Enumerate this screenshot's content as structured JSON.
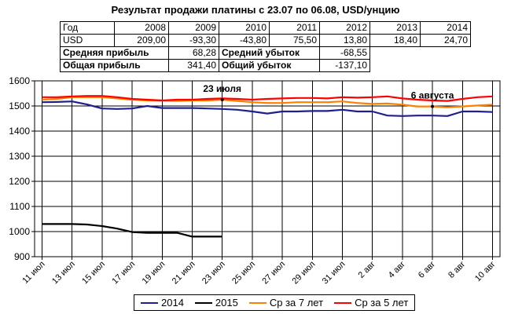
{
  "title": "Результат продажи платины с 23.07 по 06.08, USD/унцию",
  "table": {
    "header_label": "Год",
    "years": [
      "2008",
      "2009",
      "2010",
      "2011",
      "2012",
      "2013",
      "2014"
    ],
    "row_label": "USD",
    "usd": [
      "209,00",
      "-93,30",
      "-43,80",
      "75,50",
      "13,80",
      "18,40",
      "24,70"
    ],
    "avg_profit_label": "Средняя прибыль",
    "avg_profit": "68,28",
    "avg_loss_label": "Средний убыток",
    "avg_loss": "-68,55",
    "total_profit_label": "Общая прибыль",
    "total_profit": "341,40",
    "total_loss_label": "Общий убыток",
    "total_loss": "-137,10"
  },
  "chart_data": {
    "type": "line",
    "categories": [
      "11 июл",
      "12 июл",
      "13 июл",
      "14 июл",
      "15 июл",
      "16 июл",
      "17 июл",
      "18 июл",
      "19 июл",
      "20 июл",
      "21 июл",
      "22 июл",
      "23 июл",
      "24 июл",
      "25 июл",
      "26 июл",
      "27 июл",
      "28 июл",
      "29 июл",
      "30 июл",
      "31 июл",
      "1 авг",
      "2 авг",
      "3 авг",
      "4 авг",
      "5 авг",
      "6 авг",
      "7 авг",
      "8 авг",
      "9 авг",
      "10 авг"
    ],
    "x_tick_labels": [
      "11 июл",
      "13 июл",
      "15 июл",
      "17 июл",
      "19 июл",
      "21 июл",
      "23 июл",
      "25 июл",
      "27 июл",
      "29 июл",
      "31 июл",
      "2 авг",
      "4 авг",
      "6 авг",
      "8 авг",
      "10 авг"
    ],
    "ylim": [
      900,
      1600
    ],
    "yticks": [
      900,
      1000,
      1100,
      1200,
      1300,
      1400,
      1500,
      1600
    ],
    "grid": true,
    "series": [
      {
        "name": "2014",
        "color": "#1f1f8f",
        "values": [
          1515,
          1516,
          1518,
          1506,
          1490,
          1488,
          1490,
          1500,
          1492,
          1492,
          1492,
          1490,
          1488,
          1485,
          1478,
          1470,
          1478,
          1478,
          1480,
          1480,
          1485,
          1478,
          1478,
          1462,
          1460,
          1462,
          1462,
          1460,
          1478,
          1478,
          1476
        ]
      },
      {
        "name": "2015",
        "color": "#000000",
        "values": [
          1030,
          1030,
          1030,
          1028,
          1022,
          1012,
          998,
          995,
          995,
          995,
          980,
          980,
          980,
          null,
          null,
          null,
          null,
          null,
          null,
          null,
          null,
          null,
          null,
          null,
          null,
          null,
          null,
          null,
          null,
          null,
          null
        ]
      },
      {
        "name": "Ср за 7 лет",
        "color": "#ff8000",
        "values": [
          1525,
          1528,
          1535,
          1535,
          1535,
          1530,
          1525,
          1522,
          1522,
          1520,
          1522,
          1522,
          1525,
          1520,
          1515,
          1512,
          1512,
          1515,
          1515,
          1515,
          1518,
          1512,
          1508,
          1510,
          1505,
          1498,
          1498,
          1495,
          1498,
          1502,
          1505
        ]
      },
      {
        "name": "Ср за 5 лет",
        "color": "#ff0000",
        "values": [
          1535,
          1535,
          1538,
          1540,
          1540,
          1535,
          1528,
          1525,
          1522,
          1525,
          1525,
          1528,
          1530,
          1528,
          1525,
          1528,
          1530,
          1532,
          1532,
          1530,
          1535,
          1533,
          1535,
          1538,
          1530,
          1525,
          1522,
          1520,
          1528,
          1535,
          1538
        ]
      }
    ],
    "annotations": [
      {
        "text": "23 июля",
        "x": "23 июл",
        "y": 1525
      },
      {
        "text": "6 августа",
        "x": "6 авг",
        "y": 1498
      }
    ],
    "legend_position": "bottom"
  }
}
